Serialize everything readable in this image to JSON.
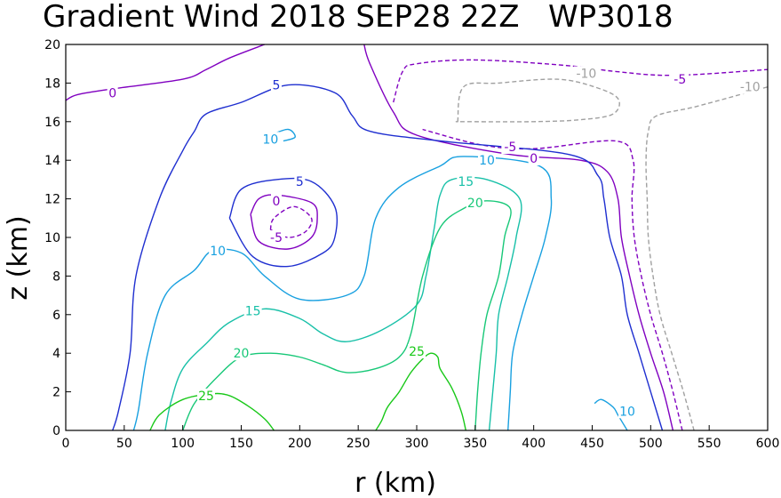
{
  "chart_data": {
    "type": "contour",
    "title": "Gradient Wind 2018 SEP28 22Z   WP3018",
    "xlabel": "r (km)",
    "ylabel": "z (km)",
    "xlim": [
      0,
      600
    ],
    "ylim": [
      0,
      20
    ],
    "x_ticks": [
      0,
      50,
      100,
      150,
      200,
      250,
      300,
      350,
      400,
      450,
      500,
      550,
      600
    ],
    "y_ticks": [
      0,
      2,
      4,
      6,
      8,
      10,
      12,
      14,
      16,
      18,
      20
    ],
    "contour_interval": 5,
    "contours": [
      {
        "level": -10,
        "color": "#a0a0a0",
        "dashed": true,
        "paths": [
          [
            [
              537,
              0
            ],
            [
              528,
              2
            ],
            [
              518,
              4
            ],
            [
              508,
              6
            ],
            [
              502,
              8
            ],
            [
              498,
              10
            ],
            [
              497,
              12
            ],
            [
              496,
              14
            ],
            [
              498,
              15.5
            ],
            [
              505,
              16.3
            ],
            [
              540,
              16.8
            ],
            [
              600,
              17.8
            ]
          ],
          [
            [
              335,
              16
            ],
            [
              340,
              17.8
            ],
            [
              370,
              18.0
            ],
            [
              420,
              18.2
            ],
            [
              452,
              17.8
            ],
            [
              472,
              17.2
            ],
            [
              468,
              16.4
            ],
            [
              440,
              16.1
            ],
            [
              400,
              16.0
            ],
            [
              340,
              16.0
            ],
            [
              335,
              16
            ]
          ]
        ],
        "labels": [
          {
            "text": "-10",
            "x": 445,
            "y": 18.5
          },
          {
            "text": "-10",
            "x": 585,
            "y": 17.8
          }
        ]
      },
      {
        "level": -5,
        "color": "#8000c0",
        "dashed": true,
        "paths": [
          [
            [
              527,
              0
            ],
            [
              519,
              2
            ],
            [
              510,
              4
            ],
            [
              500,
              6
            ],
            [
              492,
              8
            ],
            [
              486,
              10
            ],
            [
              484,
              12
            ],
            [
              485,
              14
            ],
            [
              470,
              15
            ],
            [
              400,
              14.6
            ],
            [
              355,
              14.8
            ],
            [
              305,
              15.6
            ]
          ],
          [
            [
              280,
              17
            ],
            [
              288,
              18.6
            ],
            [
              300,
              19.0
            ],
            [
              350,
              19.2
            ],
            [
              430,
              18.9
            ],
            [
              470,
              18.6
            ],
            [
              520,
              18.4
            ],
            [
              600,
              18.7
            ]
          ],
          [
            [
              175,
              10.4
            ],
            [
              178,
              11.0
            ],
            [
              195,
              11.6
            ],
            [
              210,
              11.0
            ],
            [
              205,
              10.3
            ],
            [
              190,
              10.0
            ],
            [
              175,
              10.4
            ]
          ]
        ],
        "labels": [
          {
            "text": "-5",
            "x": 380,
            "y": 14.7
          },
          {
            "text": "-5",
            "x": 525,
            "y": 18.2
          },
          {
            "text": "-5",
            "x": 180,
            "y": 10.0
          }
        ]
      },
      {
        "level": 0,
        "color": "#8000c0",
        "dashed": false,
        "paths": [
          [
            [
              519,
              0
            ],
            [
              511,
              2
            ],
            [
              500,
              4
            ],
            [
              490,
              6
            ],
            [
              482,
              8
            ],
            [
              475,
              10
            ],
            [
              472,
              12
            ],
            [
              463,
              13.4
            ],
            [
              440,
              14.0
            ],
            [
              380,
              14.3
            ],
            [
              300,
              15.3
            ],
            [
              280,
              16.5
            ],
            [
              260,
              19.0
            ],
            [
              255,
              20
            ]
          ],
          [
            [
              0,
              17.1
            ],
            [
              10,
              17.4
            ],
            [
              40,
              17.7
            ],
            [
              100,
              18.2
            ],
            [
              120,
              18.7
            ],
            [
              140,
              19.3
            ],
            [
              170,
              20
            ]
          ],
          [
            [
              158,
              11.2
            ],
            [
              165,
              12
            ],
            [
              180,
              12.2
            ],
            [
              210,
              11.8
            ],
            [
              215,
              11
            ],
            [
              210,
              10
            ],
            [
              190,
              9.4
            ],
            [
              165,
              9.8
            ],
            [
              158,
              11.2
            ]
          ]
        ],
        "labels": [
          {
            "text": "0",
            "x": 40,
            "y": 17.5
          },
          {
            "text": "0",
            "x": 400,
            "y": 14.1
          },
          {
            "text": "0",
            "x": 180,
            "y": 11.9
          }
        ]
      },
      {
        "level": 5,
        "color": "#1f2fd0",
        "dashed": false,
        "paths": [
          [
            [
              510,
              0
            ],
            [
              500,
              2
            ],
            [
              490,
              4
            ],
            [
              480,
              6
            ],
            [
              475,
              8
            ],
            [
              465,
              10
            ],
            [
              460,
              12
            ],
            [
              455,
              13.2
            ],
            [
              430,
              14.3
            ],
            [
              320,
              15
            ],
            [
              260,
              15.5
            ],
            [
              245,
              16.3
            ],
            [
              230,
              17.5
            ],
            [
              190,
              17.9
            ],
            [
              150,
              17.0
            ],
            [
              120,
              16.4
            ],
            [
              110,
              15.5
            ],
            [
              100,
              14.5
            ],
            [
              80,
              12
            ],
            [
              60,
              8
            ],
            [
              55,
              4
            ],
            [
              45,
              1
            ],
            [
              40,
              0
            ]
          ],
          [
            [
              140,
              11
            ],
            [
              150,
              12.5
            ],
            [
              180,
              13
            ],
            [
              210,
              12.9
            ],
            [
              230,
              11.6
            ],
            [
              230,
              10
            ],
            [
              220,
              9.2
            ],
            [
              190,
              8.5
            ],
            [
              160,
              9
            ],
            [
              140,
              11
            ]
          ]
        ],
        "labels": [
          {
            "text": "5",
            "x": 180,
            "y": 17.9
          },
          {
            "text": "5",
            "x": 200,
            "y": 12.9
          }
        ]
      },
      {
        "level": 10,
        "color": "#18a0e0",
        "dashed": false,
        "paths": [
          [
            [
              378,
              0
            ],
            [
              380,
              2
            ],
            [
              382,
              4
            ],
            [
              390,
              6
            ],
            [
              400,
              8
            ],
            [
              410,
              10
            ],
            [
              415,
              12
            ],
            [
              405,
              13.7
            ],
            [
              340,
              14.2
            ],
            [
              320,
              13.7
            ],
            [
              285,
              12.6
            ],
            [
              265,
              11
            ],
            [
              255,
              8
            ],
            [
              240,
              7
            ],
            [
              200,
              6.8
            ],
            [
              170,
              8
            ],
            [
              150,
              9.2
            ],
            [
              125,
              9.3
            ],
            [
              110,
              8.3
            ],
            [
              85,
              7
            ],
            [
              70,
              4
            ],
            [
              62,
              1
            ],
            [
              58,
              0
            ]
          ],
          [
            [
              480,
              0
            ],
            [
              472,
              0.8
            ],
            [
              468,
              1.2
            ],
            [
              458,
              1.6
            ],
            [
              452,
              1.4
            ]
          ],
          [
            [
              175,
              15.3
            ],
            [
              190,
              15.6
            ],
            [
              196,
              15.2
            ],
            [
              186,
              15.0
            ]
          ]
        ],
        "labels": [
          {
            "text": "10",
            "x": 130,
            "y": 9.3
          },
          {
            "text": "10",
            "x": 360,
            "y": 14.0
          },
          {
            "text": "10",
            "x": 175,
            "y": 15.1
          },
          {
            "text": "10",
            "x": 480,
            "y": 1.0
          }
        ]
      },
      {
        "level": 15,
        "color": "#18c0a8",
        "dashed": false,
        "paths": [
          [
            [
              362,
              0
            ],
            [
              365,
              2
            ],
            [
              368,
              4
            ],
            [
              370,
              6
            ],
            [
              378,
              8
            ],
            [
              385,
              10
            ],
            [
              388,
              12
            ],
            [
              360,
              13
            ],
            [
              330,
              13
            ],
            [
              320,
              12.2
            ],
            [
              315,
              10.5
            ],
            [
              308,
              8
            ],
            [
              300,
              6.5
            ],
            [
              270,
              5.2
            ],
            [
              240,
              4.6
            ],
            [
              220,
              5.0
            ],
            [
              200,
              5.8
            ],
            [
              170,
              6.3
            ],
            [
              140,
              5.6
            ],
            [
              120,
              4.5
            ],
            [
              100,
              3.2
            ],
            [
              90,
              1.5
            ],
            [
              85,
              0
            ]
          ]
        ],
        "labels": [
          {
            "text": "15",
            "x": 160,
            "y": 6.2
          },
          {
            "text": "15",
            "x": 342,
            "y": 12.9
          }
        ]
      },
      {
        "level": 20,
        "color": "#18c878",
        "dashed": false,
        "paths": [
          [
            [
              350,
              0
            ],
            [
              352,
              2
            ],
            [
              355,
              4
            ],
            [
              360,
              6
            ],
            [
              370,
              8
            ],
            [
              375,
              10
            ],
            [
              380,
              11.5
            ],
            [
              360,
              11.9
            ],
            [
              340,
              11.5
            ],
            [
              320,
              10.5
            ],
            [
              305,
              8
            ],
            [
              295,
              5
            ],
            [
              285,
              3.8
            ],
            [
              265,
              3.2
            ],
            [
              240,
              3.0
            ],
            [
              220,
              3.4
            ],
            [
              200,
              3.8
            ],
            [
              175,
              4.0
            ],
            [
              150,
              3.8
            ],
            [
              130,
              2.8
            ],
            [
              110,
              1.4
            ],
            [
              100,
              0
            ]
          ]
        ],
        "labels": [
          {
            "text": "20",
            "x": 150,
            "y": 4.0
          },
          {
            "text": "20",
            "x": 350,
            "y": 11.8
          }
        ]
      },
      {
        "level": 25,
        "color": "#18c818",
        "dashed": false,
        "paths": [
          [
            [
              342,
              0
            ],
            [
              338,
              1
            ],
            [
              330,
              2.2
            ],
            [
              320,
              3.2
            ],
            [
              318,
              3.8
            ],
            [
              312,
              4
            ],
            [
              305,
              3.7
            ],
            [
              295,
              3
            ],
            [
              285,
              2
            ],
            [
              275,
              1.2
            ],
            [
              270,
              0.5
            ],
            [
              265,
              0
            ]
          ],
          [
            [
              72,
              0
            ],
            [
              80,
              0.8
            ],
            [
              100,
              1.6
            ],
            [
              125,
              1.9
            ],
            [
              140,
              1.8
            ],
            [
              155,
              1.3
            ],
            [
              170,
              0.6
            ],
            [
              178,
              0
            ]
          ]
        ],
        "labels": [
          {
            "text": "25",
            "x": 300,
            "y": 4.1
          },
          {
            "text": "25",
            "x": 120,
            "y": 1.8
          }
        ]
      }
    ]
  }
}
